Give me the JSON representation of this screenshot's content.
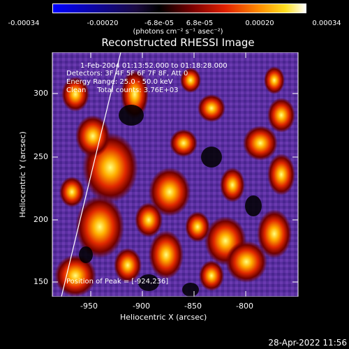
{
  "colorbar": {
    "ticks": [
      "-0.00034",
      "-0.00020",
      "-6.8e-05",
      "6.8e-05",
      "0.00020",
      "0.00034"
    ],
    "units": "(photons cm⁻² s⁻¹ asec⁻²)"
  },
  "title": "Reconstructed RHESSI Image",
  "annotations": {
    "time_range": "1-Feb-2004 01:13:52.000 to 01:18:28.000",
    "detectors": "Detectors: 3F 4F 5F 6F 7F 8F, Att 0",
    "energy": "Energy Range: 25.0 - 50.0 keV",
    "clean": "Clean     Total counts: 3.76E+03",
    "peak": "Position of Peak = [-924,236]"
  },
  "axes": {
    "xlabel": "Heliocentric X (arcsec)",
    "ylabel": "Heliocentric Y (arcsec)",
    "xticks": [
      "-950",
      "-900",
      "-850",
      "-800"
    ],
    "yticks": [
      "150",
      "200",
      "250",
      "300"
    ]
  },
  "footer": "28-Apr-2022 11:56",
  "colors": {
    "low": "#0000ff",
    "mid": "#000000",
    "purple": "#5a2fa0",
    "high": "#ffffff"
  }
}
